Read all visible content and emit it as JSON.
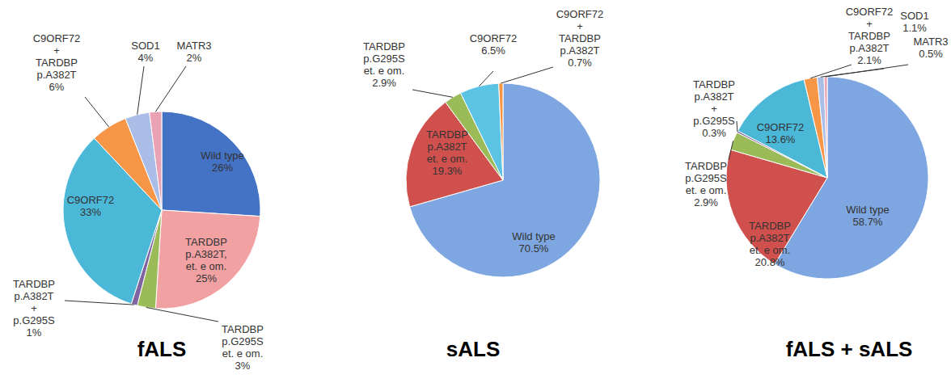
{
  "chart_data": [
    {
      "type": "pie",
      "title": "fALS",
      "categories": [
        "Wild type",
        "TARDBP p.A382T, et. e om.",
        "TARDBP p.G295S et. e om.",
        "TARDBP p.A382T + p.G295S",
        "C9ORF72",
        "C9ORF72 + TARDBP p.A382T",
        "SOD1",
        "MATR3"
      ],
      "values": [
        26,
        25,
        3,
        1,
        33,
        6,
        4,
        2
      ],
      "value_labels": [
        "26%",
        "25%",
        "3%",
        "1%",
        "33%",
        "6%",
        "4%",
        "2%"
      ],
      "colors": [
        "#4472c4",
        "#f2a1a3",
        "#9bbb59",
        "#8064a2",
        "#4bb8d8",
        "#f79646",
        "#a9bde6",
        "#eaa3b4"
      ]
    },
    {
      "type": "pie",
      "title": "sALS",
      "categories": [
        "Wild type",
        "TARDBP p.A382T et. e om.",
        "TARDBP p.G295S et. e om.",
        "C9ORF72",
        "C9ORF72 + TARDBP p.A382T"
      ],
      "values": [
        70.5,
        19.3,
        2.9,
        6.5,
        0.7
      ],
      "value_labels": [
        "70.5%",
        "19.3%",
        "2.9%",
        "6.5%",
        "0.7%"
      ],
      "colors": [
        "#7ea6e0",
        "#d0504d",
        "#9bbb59",
        "#5bc3e3",
        "#f79646"
      ]
    },
    {
      "type": "pie",
      "title": "fALS + sALS",
      "categories": [
        "Wild type",
        "TARDBP p.A382T et. e om.",
        "TARDBP p.G295S et. e om.",
        "TARDBP p.A382T + p.G295S",
        "C9ORF72",
        "C9ORF72 + TARDBP p.A382T",
        "SOD1",
        "MATR3"
      ],
      "values": [
        58.7,
        20.8,
        2.9,
        0.3,
        13.6,
        2.1,
        1.1,
        0.5
      ],
      "value_labels": [
        "58.7%",
        "20.8%",
        "2.9%",
        "0.3%",
        "13.6%",
        "2.1%",
        "1.1%",
        "0.5%"
      ],
      "colors": [
        "#7ea6e0",
        "#d0504d",
        "#9bbb59",
        "#8064a2",
        "#4bb8d8",
        "#f79646",
        "#a9bde6",
        "#eaa3b4"
      ]
    }
  ]
}
